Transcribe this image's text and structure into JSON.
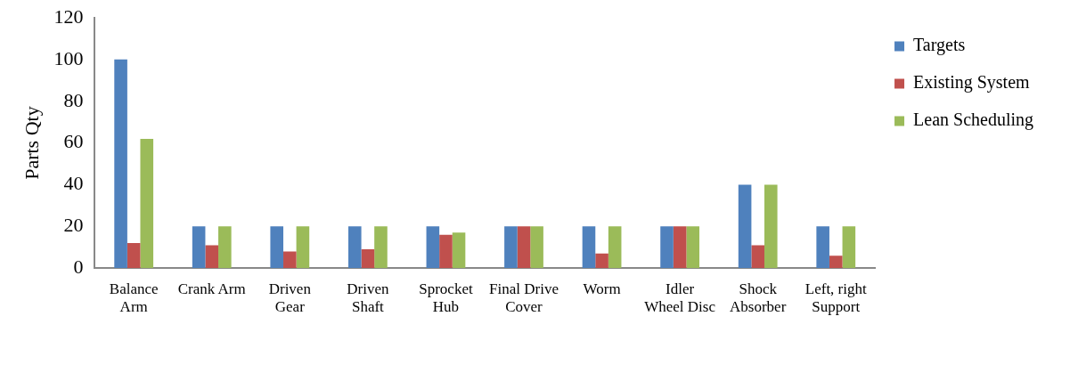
{
  "chart_data": {
    "type": "bar",
    "ylabel": "Parts Qty",
    "categories": [
      "Balance\nArm",
      "Crank Arm",
      "Driven\nGear",
      "Driven\nShaft",
      "Sprocket\nHub",
      "Final Drive\nCover",
      "Worm",
      "Idler\nWheel Disc",
      "Shock\nAbsorber",
      "Left, right\nSupport"
    ],
    "series": [
      {
        "name": "Targets",
        "color": "#4f81bd",
        "values": [
          100,
          20,
          20,
          20,
          20,
          20,
          20,
          20,
          40,
          20
        ]
      },
      {
        "name": "Existing System",
        "color": "#c0504d",
        "values": [
          12,
          11,
          8,
          9,
          16,
          20,
          7,
          20,
          11,
          6
        ]
      },
      {
        "name": "Lean Scheduling",
        "color": "#9bbb59",
        "values": [
          62,
          20,
          20,
          20,
          17,
          20,
          20,
          20,
          40,
          20
        ]
      }
    ],
    "ylim": [
      0,
      120
    ],
    "yticks": [
      0,
      20,
      40,
      60,
      80,
      100,
      120
    ],
    "grid": false,
    "legend": "right"
  }
}
